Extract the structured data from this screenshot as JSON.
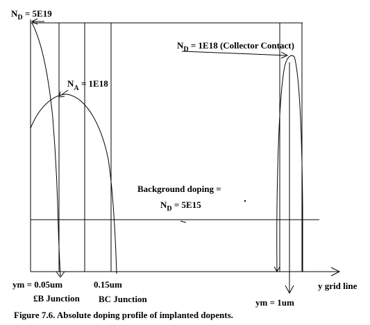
{
  "labels": {
    "nd_emitter_main": "N",
    "nd_emitter_sub": "D",
    "nd_emitter_value": " = 5E19",
    "na_base_main": "N",
    "na_base_sub": "A",
    "na_base_value": " = 1E18",
    "nd_collector_main": "N",
    "nd_collector_sub": "D",
    "nd_collector_value": " = 1E18 (Collector Contact)",
    "background_line1": "Background doping =",
    "background_main": "N",
    "background_sub": "D",
    "background_value": " = 5E15",
    "ym_left": "ym =  0.05um",
    "bc_position": "0.15um",
    "eb_junction": "£B Junction",
    "bc_junction": "BC Junction",
    "y_grid_line": "y grid line",
    "ym_right": "ym = 1um",
    "caption": "Figure 7.6. Absolute doping profile of implanted dopents."
  }
}
